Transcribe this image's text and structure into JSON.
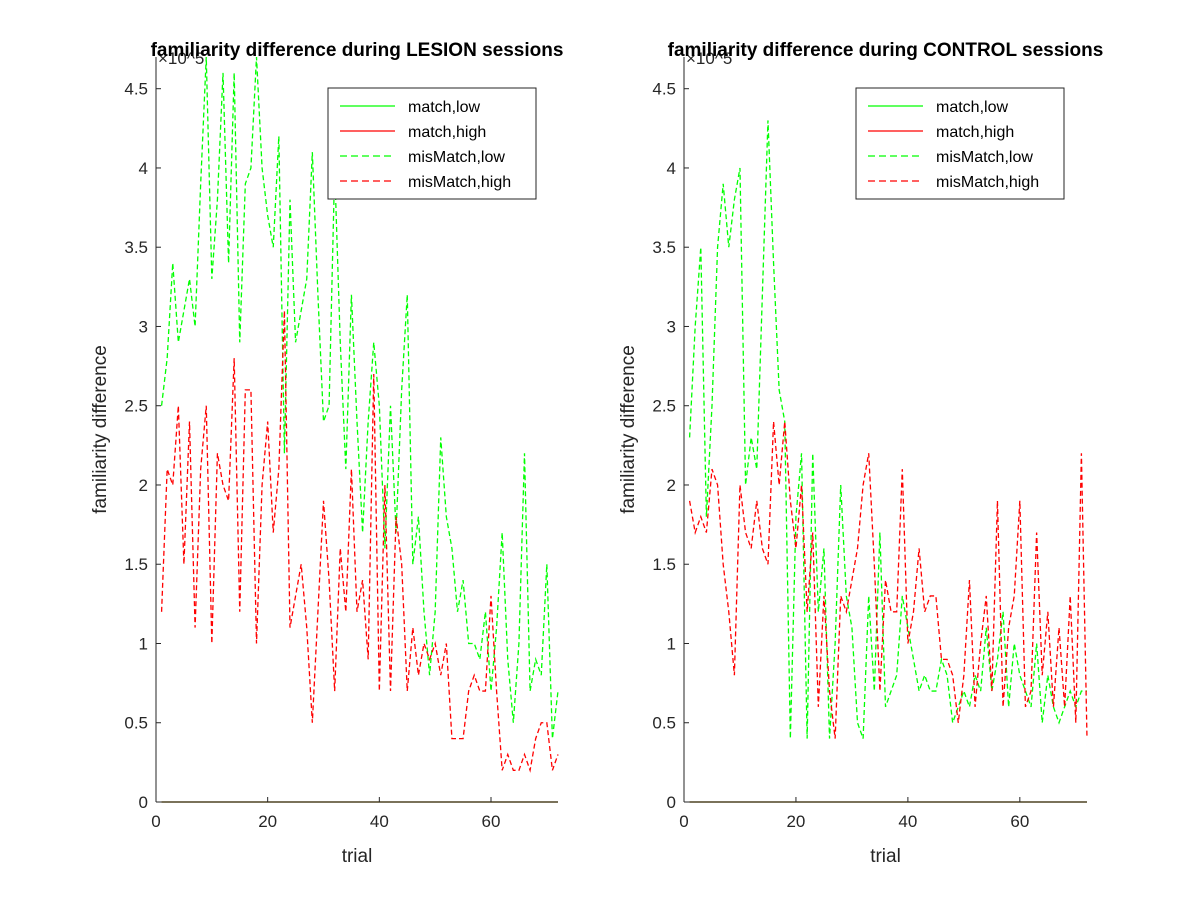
{
  "chart_data": [
    {
      "type": "line",
      "title": "familiarity difference during LESION sessions",
      "xlabel": "trial",
      "ylabel": "familiarity difference",
      "y_exponent": "×10^5",
      "xlim": [
        0,
        72
      ],
      "ylim": [
        0,
        4.7
      ],
      "xticks": [
        0,
        20,
        40,
        60
      ],
      "yticks": [
        0,
        0.5,
        1,
        1.5,
        2,
        2.5,
        3,
        3.5,
        4,
        4.5
      ],
      "legend_position": "top-right",
      "series": [
        {
          "name": "match,low",
          "color": "#00ff00",
          "dash": "solid",
          "x": [
            1,
            72
          ],
          "y": [
            0,
            0
          ]
        },
        {
          "name": "match,high",
          "color": "#ff0000",
          "dash": "solid",
          "x": [
            1,
            72
          ],
          "y": [
            0,
            0
          ]
        },
        {
          "name": "misMatch,low",
          "color": "#00ff00",
          "dash": "dashed",
          "x": [
            1,
            2,
            3,
            4,
            5,
            6,
            7,
            8,
            9,
            10,
            11,
            12,
            13,
            14,
            15,
            16,
            17,
            18,
            19,
            20,
            21,
            22,
            23,
            24,
            25,
            26,
            27,
            28,
            29,
            30,
            31,
            32,
            33,
            34,
            35,
            36,
            37,
            38,
            39,
            40,
            41,
            42,
            43,
            44,
            45,
            46,
            47,
            48,
            49,
            50,
            51,
            52,
            53,
            54,
            55,
            56,
            57,
            58,
            59,
            60,
            61,
            62,
            63,
            64,
            65,
            66,
            67,
            68,
            69,
            70,
            71,
            72
          ],
          "y": [
            2.5,
            2.8,
            3.4,
            2.9,
            3.1,
            3.3,
            3.0,
            3.9,
            4.7,
            3.3,
            3.8,
            4.6,
            3.4,
            4.6,
            2.9,
            3.9,
            4.0,
            4.7,
            4.0,
            3.7,
            3.5,
            4.2,
            2.2,
            3.8,
            2.9,
            3.1,
            3.3,
            4.1,
            3.2,
            2.4,
            2.5,
            4.0,
            2.9,
            2.1,
            3.2,
            2.4,
            1.7,
            2.4,
            2.9,
            2.5,
            1.6,
            2.5,
            1.7,
            2.6,
            3.2,
            1.5,
            1.8,
            1.2,
            0.8,
            1.2,
            2.3,
            1.8,
            1.6,
            1.2,
            1.4,
            1.0,
            1.0,
            0.9,
            1.2,
            0.7,
            1.1,
            1.7,
            0.9,
            0.5,
            1.0,
            2.2,
            0.7,
            0.9,
            0.8,
            1.5,
            0.4,
            0.7
          ]
        },
        {
          "name": "misMatch,high",
          "color": "#ff0000",
          "dash": "dashed",
          "x": [
            1,
            2,
            3,
            4,
            5,
            6,
            7,
            8,
            9,
            10,
            11,
            12,
            13,
            14,
            15,
            16,
            17,
            18,
            19,
            20,
            21,
            22,
            23,
            24,
            25,
            26,
            27,
            28,
            29,
            30,
            31,
            32,
            33,
            34,
            35,
            36,
            37,
            38,
            39,
            40,
            41,
            42,
            43,
            44,
            45,
            46,
            47,
            48,
            49,
            50,
            51,
            52,
            53,
            54,
            55,
            56,
            57,
            58,
            59,
            60,
            61,
            62,
            63,
            64,
            65,
            66,
            67,
            68,
            69,
            70,
            71,
            72
          ],
          "y": [
            1.2,
            2.1,
            2.0,
            2.5,
            1.5,
            2.4,
            1.1,
            2.1,
            2.5,
            1.0,
            2.2,
            2.0,
            1.9,
            2.8,
            1.2,
            2.6,
            2.6,
            1.0,
            2.0,
            2.4,
            1.7,
            2.1,
            3.1,
            1.1,
            1.3,
            1.5,
            1.1,
            0.5,
            1.2,
            1.9,
            1.4,
            0.7,
            1.6,
            1.2,
            2.1,
            1.2,
            1.4,
            0.9,
            2.7,
            0.7,
            2.0,
            0.7,
            1.8,
            1.5,
            0.7,
            1.1,
            0.8,
            1.0,
            0.9,
            1.0,
            0.8,
            1.0,
            0.4,
            0.4,
            0.4,
            0.7,
            0.8,
            0.7,
            0.7,
            1.3,
            0.7,
            0.2,
            0.3,
            0.2,
            0.2,
            0.3,
            0.2,
            0.4,
            0.5,
            0.5,
            0.2,
            0.3
          ]
        }
      ]
    },
    {
      "type": "line",
      "title": "familiarity difference during CONTROL sessions",
      "xlabel": "trial",
      "ylabel": "familiarity difference",
      "y_exponent": "×10^5",
      "xlim": [
        0,
        72
      ],
      "ylim": [
        0,
        4.7
      ],
      "xticks": [
        0,
        20,
        40,
        60
      ],
      "yticks": [
        0,
        0.5,
        1,
        1.5,
        2,
        2.5,
        3,
        3.5,
        4,
        4.5
      ],
      "legend_position": "top-right",
      "series": [
        {
          "name": "match,low",
          "color": "#00ff00",
          "dash": "solid",
          "x": [
            1,
            72
          ],
          "y": [
            0,
            0
          ]
        },
        {
          "name": "match,high",
          "color": "#ff0000",
          "dash": "solid",
          "x": [
            1,
            72
          ],
          "y": [
            0,
            0
          ]
        },
        {
          "name": "misMatch,low",
          "color": "#00ff00",
          "dash": "dashed",
          "x": [
            1,
            2,
            3,
            4,
            5,
            6,
            7,
            8,
            9,
            10,
            11,
            12,
            13,
            14,
            15,
            16,
            17,
            18,
            19,
            20,
            21,
            22,
            23,
            24,
            25,
            26,
            27,
            28,
            29,
            30,
            31,
            32,
            33,
            34,
            35,
            36,
            37,
            38,
            39,
            40,
            41,
            42,
            43,
            44,
            45,
            46,
            47,
            48,
            49,
            50,
            51,
            52,
            53,
            54,
            55,
            56,
            57,
            58,
            59,
            60,
            61,
            62,
            63,
            64,
            65,
            66,
            67,
            68,
            69,
            70,
            71,
            72
          ],
          "y": [
            2.3,
            3.0,
            3.5,
            1.8,
            2.5,
            3.5,
            3.9,
            3.5,
            3.8,
            4.0,
            2.0,
            2.3,
            2.1,
            3.2,
            4.3,
            3.4,
            2.6,
            2.4,
            0.4,
            1.8,
            2.2,
            0.4,
            2.2,
            1.2,
            1.6,
            0.4,
            1.0,
            2.0,
            1.3,
            1.1,
            0.5,
            0.4,
            1.3,
            0.7,
            1.7,
            0.6,
            0.7,
            0.8,
            1.3,
            1.1,
            0.9,
            0.7,
            0.8,
            0.7,
            0.7,
            0.9,
            0.8,
            0.5,
            0.6,
            0.7,
            0.6,
            0.8,
            0.7,
            1.1,
            0.7,
            0.9,
            1.2,
            0.6,
            1.0,
            0.8,
            0.7,
            0.6,
            1.0,
            0.5,
            0.8,
            0.6,
            0.5,
            0.6,
            0.7,
            0.6,
            0.7,
            0.7
          ]
        },
        {
          "name": "misMatch,high",
          "color": "#ff0000",
          "dash": "dashed",
          "x": [
            1,
            2,
            3,
            4,
            5,
            6,
            7,
            8,
            9,
            10,
            11,
            12,
            13,
            14,
            15,
            16,
            17,
            18,
            19,
            20,
            21,
            22,
            23,
            24,
            25,
            26,
            27,
            28,
            29,
            30,
            31,
            32,
            33,
            34,
            35,
            36,
            37,
            38,
            39,
            40,
            41,
            42,
            43,
            44,
            45,
            46,
            47,
            48,
            49,
            50,
            51,
            52,
            53,
            54,
            55,
            56,
            57,
            58,
            59,
            60,
            61,
            62,
            63,
            64,
            65,
            66,
            67,
            68,
            69,
            70,
            71,
            72
          ],
          "y": [
            1.9,
            1.7,
            1.8,
            1.7,
            2.1,
            2.0,
            1.5,
            1.2,
            0.8,
            2.0,
            1.7,
            1.6,
            1.9,
            1.6,
            1.5,
            2.4,
            2.0,
            2.4,
            1.9,
            1.6,
            2.0,
            1.2,
            1.7,
            0.6,
            1.3,
            0.7,
            0.4,
            1.3,
            1.2,
            1.4,
            1.6,
            2.0,
            2.2,
            1.5,
            0.7,
            1.4,
            1.2,
            1.2,
            2.1,
            1.0,
            1.2,
            1.6,
            1.2,
            1.3,
            1.3,
            0.9,
            0.9,
            0.8,
            0.5,
            0.8,
            1.4,
            0.6,
            1.0,
            1.3,
            0.7,
            1.9,
            0.6,
            1.1,
            1.3,
            1.9,
            0.6,
            0.7,
            1.7,
            0.8,
            1.2,
            0.6,
            1.1,
            0.6,
            1.3,
            0.5,
            2.2,
            0.4
          ]
        }
      ]
    }
  ]
}
